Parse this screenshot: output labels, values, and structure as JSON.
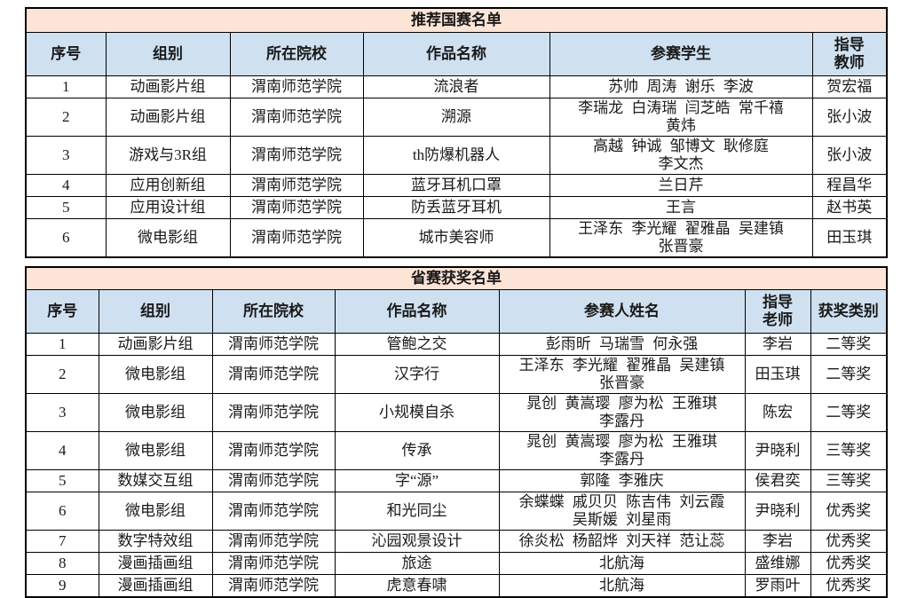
{
  "colors": {
    "title_bg": "#fce4d6",
    "header_bg": "#cfe0f0",
    "border": "#000000",
    "text": "#1a1a1a"
  },
  "tables": [
    {
      "title": "推荐国赛名单",
      "columns": [
        "序号",
        "组别",
        "所在院校",
        "作品名称",
        "参赛学生",
        "指导\n教师"
      ],
      "rows": [
        [
          "1",
          "动画影片组",
          "渭南师范学院",
          "流浪者",
          "苏帅 周涛 谢乐 李波",
          "贺宏福"
        ],
        [
          "2",
          "动画影片组",
          "渭南师范学院",
          "溯源",
          "李瑞龙 白涛瑞 闫芝皓 常千禧\n黄炜",
          "张小波"
        ],
        [
          "3",
          "游戏与3R组",
          "渭南师范学院",
          "th防爆机器人",
          "高越 钟诚 邹博文 耿修庭\n李文杰",
          "张小波"
        ],
        [
          "4",
          "应用创新组",
          "渭南师范学院",
          "蓝牙耳机口罩",
          "兰日芹",
          "程昌华"
        ],
        [
          "5",
          "应用设计组",
          "渭南师范学院",
          "防丢蓝牙耳机",
          "王言",
          "赵书英"
        ],
        [
          "6",
          "微电影组",
          "渭南师范学院",
          "城市美容师",
          "王泽东 李光耀 翟雅晶 吴建镇\n张晋豪",
          "田玉琪"
        ]
      ]
    },
    {
      "title": "省赛获奖名单",
      "columns": [
        "序号",
        "组别",
        "所在院校",
        "作品名称",
        "参赛人姓名",
        "指导\n老师",
        "获奖类别"
      ],
      "rows": [
        [
          "1",
          "动画影片组",
          "渭南师范学院",
          "管鲍之交",
          "彭雨昕 马瑞雪 何永强",
          "李岩",
          "二等奖"
        ],
        [
          "2",
          "微电影组",
          "渭南师范学院",
          "汉字行",
          "王泽东 李光耀 翟雅晶 吴建镇\n张晋豪",
          "田玉琪",
          "二等奖"
        ],
        [
          "3",
          "微电影组",
          "渭南师范学院",
          "小规模自杀",
          "晁创 黄嵩璎 廖为松 王雅琪\n李露丹",
          "陈宏",
          "二等奖"
        ],
        [
          "4",
          "微电影组",
          "渭南师范学院",
          "传承",
          "晁创 黄嵩璎 廖为松 王雅琪\n李露丹",
          "尹晓利",
          "三等奖"
        ],
        [
          "5",
          "数媒交互组",
          "渭南师范学院",
          "字“源”",
          "郭隆 李雅庆",
          "侯君奕",
          "三等奖"
        ],
        [
          "6",
          "微电影组",
          "渭南师范学院",
          "和光同尘",
          "余蝶蝶 戚贝贝 陈吉伟 刘云霞\n吴斯媛 刘星雨",
          "尹晓利",
          "优秀奖"
        ],
        [
          "7",
          "数字特效组",
          "渭南师范学院",
          "沁园观景设计",
          "徐炎松 杨韶烨 刘天祥 范让蕊",
          "李岩",
          "优秀奖"
        ],
        [
          "8",
          "漫画插画组",
          "渭南师范学院",
          "旅途",
          "北航海",
          "盛维娜",
          "优秀奖"
        ],
        [
          "9",
          "漫画插画组",
          "渭南师范学院",
          "虎意春啸",
          "北航海",
          "罗雨叶",
          "优秀奖"
        ]
      ]
    }
  ]
}
